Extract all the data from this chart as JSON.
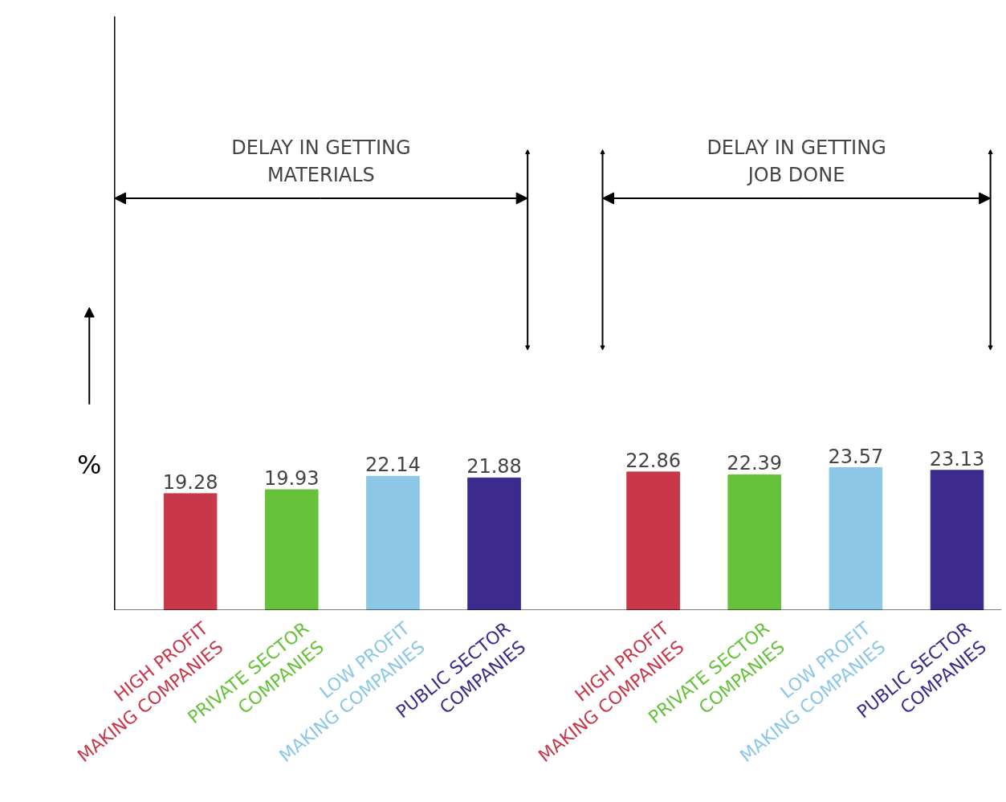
{
  "chart_data": {
    "type": "bar",
    "ylabel": "%",
    "categories": [
      "HIGH PROFIT\nMAKING COMPANIES",
      "PRIVATE SECTOR\nCOMPANIES",
      "LOW PROFIT\nMAKING COMPANIES",
      "PUBLIC SECTOR\nCOMPANIES",
      "HIGH PROFIT\nMAKING COMPANIES",
      "PRIVATE SECTOR\nCOMPANIES",
      "LOW PROFIT\nMAKING COMPANIES",
      "PUBLIC SECTOR\nCOMPANIES"
    ],
    "values": [
      19.28,
      19.93,
      22.14,
      21.88,
      22.86,
      22.39,
      23.57,
      23.13
    ],
    "colors": [
      "#c8374a",
      "#66c23a",
      "#8cc8e6",
      "#3c2a8c",
      "#c8374a",
      "#66c23a",
      "#8cc8e6",
      "#3c2a8c"
    ],
    "data_labels": true,
    "ylim": [
      0,
      98
    ],
    "tick_labels": "x",
    "annotations": [
      "DELAY IN GETTING\nMATERIALS",
      "DELAY IN GETTING\nJOB DONE"
    ]
  }
}
